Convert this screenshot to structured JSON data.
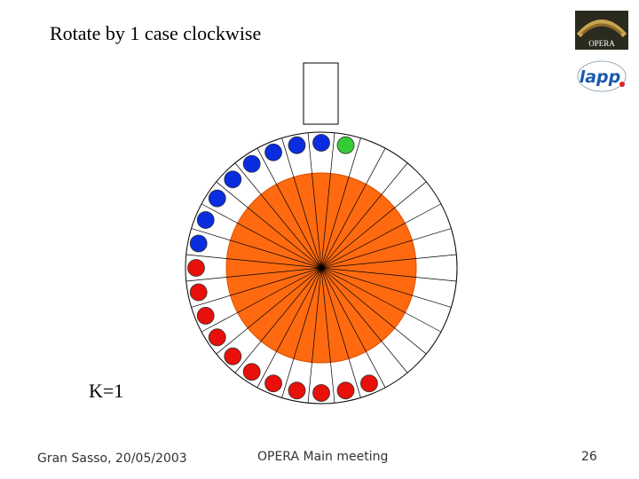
{
  "header": {
    "title": "Rotate by 1 case clockwise",
    "logos": [
      "OPERA",
      "lapp"
    ]
  },
  "diagram": {
    "label": "K=1"
  },
  "footer": {
    "left": "Gran Sasso, 20/05/2003",
    "center": "OPERA Main meeting",
    "page": "26"
  }
}
